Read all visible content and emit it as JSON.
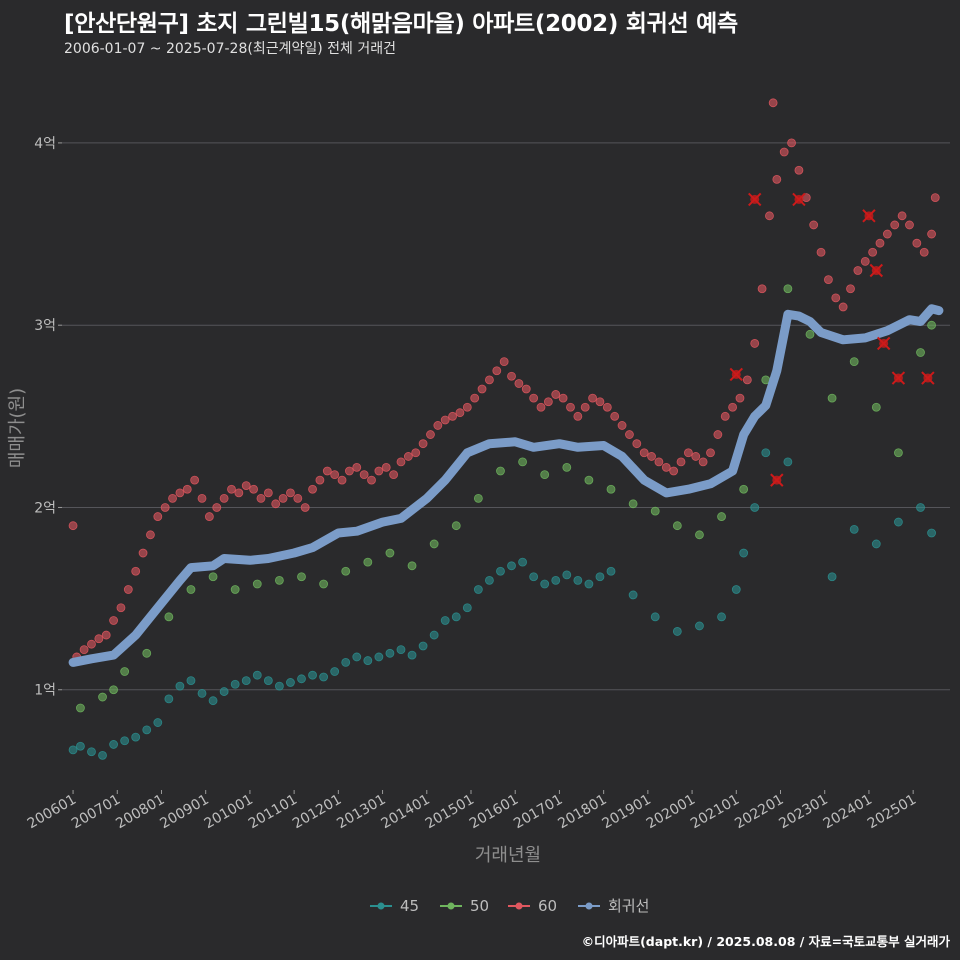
{
  "header": {
    "title": "[안산단원구] 초지 그린빌15(해맑음마을) 아파트(2002) 회귀선 예측",
    "subtitle": "2006-01-07 ~ 2025-07-28(최근계약일) 전체 거래건"
  },
  "footer": {
    "credit": "©디아파트(dapt.kr) / 2025.08.08 / 자료=국토교통부 실거래가"
  },
  "colors": {
    "background": "#2a2a2c",
    "grid": "#55555a",
    "s45": "#2b8f8f",
    "s50": "#6fb55e",
    "s60": "#e0575f",
    "regression": "#7b9cc8",
    "marker": "#cc1a1a"
  },
  "chart_data": {
    "type": "scatter",
    "xlabel": "거래년월",
    "ylabel": "매매가(원)",
    "x_range": [
      "2005-10",
      "2025-11"
    ],
    "ylim": [
      0.45,
      4.4
    ],
    "y_unit": "억",
    "y_ticks": [
      {
        "value": 1,
        "label": "1억"
      },
      {
        "value": 2,
        "label": "2억"
      },
      {
        "value": 3,
        "label": "3억"
      },
      {
        "value": 4,
        "label": "4억"
      }
    ],
    "x_ticks": [
      "200601",
      "200701",
      "200801",
      "200901",
      "201001",
      "201101",
      "201201",
      "201301",
      "201401",
      "201501",
      "201601",
      "201701",
      "201801",
      "201901",
      "202001",
      "202101",
      "202201",
      "202301",
      "202401",
      "202501"
    ],
    "grid": true,
    "legend_position": "bottom",
    "series": [
      {
        "name": "45",
        "points": [
          [
            "2006-01",
            0.67
          ],
          [
            "2006-03",
            0.69
          ],
          [
            "2006-06",
            0.66
          ],
          [
            "2006-09",
            0.64
          ],
          [
            "2006-12",
            0.7
          ],
          [
            "2007-03",
            0.72
          ],
          [
            "2007-06",
            0.74
          ],
          [
            "2007-09",
            0.78
          ],
          [
            "2007-12",
            0.82
          ],
          [
            "2008-03",
            0.95
          ],
          [
            "2008-06",
            1.02
          ],
          [
            "2008-09",
            1.05
          ],
          [
            "2008-12",
            0.98
          ],
          [
            "2009-03",
            0.94
          ],
          [
            "2009-06",
            0.99
          ],
          [
            "2009-09",
            1.03
          ],
          [
            "2009-12",
            1.05
          ],
          [
            "2010-03",
            1.08
          ],
          [
            "2010-06",
            1.05
          ],
          [
            "2010-09",
            1.02
          ],
          [
            "2010-12",
            1.04
          ],
          [
            "2011-03",
            1.06
          ],
          [
            "2011-06",
            1.08
          ],
          [
            "2011-09",
            1.07
          ],
          [
            "2011-12",
            1.1
          ],
          [
            "2012-03",
            1.15
          ],
          [
            "2012-06",
            1.18
          ],
          [
            "2012-09",
            1.16
          ],
          [
            "2012-12",
            1.18
          ],
          [
            "2013-03",
            1.2
          ],
          [
            "2013-06",
            1.22
          ],
          [
            "2013-09",
            1.19
          ],
          [
            "2013-12",
            1.24
          ],
          [
            "2014-03",
            1.3
          ],
          [
            "2014-06",
            1.38
          ],
          [
            "2014-09",
            1.4
          ],
          [
            "2014-12",
            1.45
          ],
          [
            "2015-03",
            1.55
          ],
          [
            "2015-06",
            1.6
          ],
          [
            "2015-09",
            1.65
          ],
          [
            "2015-12",
            1.68
          ],
          [
            "2016-03",
            1.7
          ],
          [
            "2016-06",
            1.62
          ],
          [
            "2016-09",
            1.58
          ],
          [
            "2016-12",
            1.6
          ],
          [
            "2017-03",
            1.63
          ],
          [
            "2017-06",
            1.6
          ],
          [
            "2017-09",
            1.58
          ],
          [
            "2017-12",
            1.62
          ],
          [
            "2018-03",
            1.65
          ],
          [
            "2018-09",
            1.52
          ],
          [
            "2019-03",
            1.4
          ],
          [
            "2019-09",
            1.32
          ],
          [
            "2020-03",
            1.35
          ],
          [
            "2020-09",
            1.4
          ],
          [
            "2021-01",
            1.55
          ],
          [
            "2021-03",
            1.75
          ],
          [
            "2021-06",
            2.0
          ],
          [
            "2021-09",
            2.3
          ],
          [
            "2022-03",
            2.25
          ],
          [
            "2023-03",
            1.62
          ],
          [
            "2023-09",
            1.88
          ],
          [
            "2024-03",
            1.8
          ],
          [
            "2024-09",
            1.92
          ],
          [
            "2025-03",
            2.0
          ],
          [
            "2025-06",
            1.86
          ]
        ]
      },
      {
        "name": "50",
        "points": [
          [
            "2006-03",
            0.9
          ],
          [
            "2006-09",
            0.96
          ],
          [
            "2006-12",
            1.0
          ],
          [
            "2007-03",
            1.1
          ],
          [
            "2007-09",
            1.2
          ],
          [
            "2008-03",
            1.4
          ],
          [
            "2008-09",
            1.55
          ],
          [
            "2009-03",
            1.62
          ],
          [
            "2009-09",
            1.55
          ],
          [
            "2010-03",
            1.58
          ],
          [
            "2010-09",
            1.6
          ],
          [
            "2011-03",
            1.62
          ],
          [
            "2011-09",
            1.58
          ],
          [
            "2012-03",
            1.65
          ],
          [
            "2012-09",
            1.7
          ],
          [
            "2013-03",
            1.75
          ],
          [
            "2013-09",
            1.68
          ],
          [
            "2014-03",
            1.8
          ],
          [
            "2014-09",
            1.9
          ],
          [
            "2015-03",
            2.05
          ],
          [
            "2015-09",
            2.2
          ],
          [
            "2016-03",
            2.25
          ],
          [
            "2016-09",
            2.18
          ],
          [
            "2017-03",
            2.22
          ],
          [
            "2017-09",
            2.15
          ],
          [
            "2018-03",
            2.1
          ],
          [
            "2018-09",
            2.02
          ],
          [
            "2019-03",
            1.98
          ],
          [
            "2019-09",
            1.9
          ],
          [
            "2020-03",
            1.85
          ],
          [
            "2020-09",
            1.95
          ],
          [
            "2021-03",
            2.1
          ],
          [
            "2021-09",
            2.7
          ],
          [
            "2022-03",
            3.2
          ],
          [
            "2022-09",
            2.95
          ],
          [
            "2023-03",
            2.6
          ],
          [
            "2023-09",
            2.8
          ],
          [
            "2024-03",
            2.55
          ],
          [
            "2024-09",
            2.3
          ],
          [
            "2025-03",
            2.85
          ],
          [
            "2025-06",
            3.0
          ]
        ]
      },
      {
        "name": "60",
        "points": [
          [
            "2006-01",
            1.9
          ],
          [
            "2006-02",
            1.18
          ],
          [
            "2006-04",
            1.22
          ],
          [
            "2006-06",
            1.25
          ],
          [
            "2006-08",
            1.28
          ],
          [
            "2006-10",
            1.3
          ],
          [
            "2006-12",
            1.38
          ],
          [
            "2007-02",
            1.45
          ],
          [
            "2007-04",
            1.55
          ],
          [
            "2007-06",
            1.65
          ],
          [
            "2007-08",
            1.75
          ],
          [
            "2007-10",
            1.85
          ],
          [
            "2007-12",
            1.95
          ],
          [
            "2008-02",
            2.0
          ],
          [
            "2008-04",
            2.05
          ],
          [
            "2008-06",
            2.08
          ],
          [
            "2008-08",
            2.1
          ],
          [
            "2008-10",
            2.15
          ],
          [
            "2008-12",
            2.05
          ],
          [
            "2009-02",
            1.95
          ],
          [
            "2009-04",
            2.0
          ],
          [
            "2009-06",
            2.05
          ],
          [
            "2009-08",
            2.1
          ],
          [
            "2009-10",
            2.08
          ],
          [
            "2009-12",
            2.12
          ],
          [
            "2010-02",
            2.1
          ],
          [
            "2010-04",
            2.05
          ],
          [
            "2010-06",
            2.08
          ],
          [
            "2010-08",
            2.02
          ],
          [
            "2010-10",
            2.05
          ],
          [
            "2010-12",
            2.08
          ],
          [
            "2011-02",
            2.05
          ],
          [
            "2011-04",
            2.0
          ],
          [
            "2011-06",
            2.1
          ],
          [
            "2011-08",
            2.15
          ],
          [
            "2011-10",
            2.2
          ],
          [
            "2011-12",
            2.18
          ],
          [
            "2012-02",
            2.15
          ],
          [
            "2012-04",
            2.2
          ],
          [
            "2012-06",
            2.22
          ],
          [
            "2012-08",
            2.18
          ],
          [
            "2012-10",
            2.15
          ],
          [
            "2012-12",
            2.2
          ],
          [
            "2013-02",
            2.22
          ],
          [
            "2013-04",
            2.18
          ],
          [
            "2013-06",
            2.25
          ],
          [
            "2013-08",
            2.28
          ],
          [
            "2013-10",
            2.3
          ],
          [
            "2013-12",
            2.35
          ],
          [
            "2014-02",
            2.4
          ],
          [
            "2014-04",
            2.45
          ],
          [
            "2014-06",
            2.48
          ],
          [
            "2014-08",
            2.5
          ],
          [
            "2014-10",
            2.52
          ],
          [
            "2014-12",
            2.55
          ],
          [
            "2015-02",
            2.6
          ],
          [
            "2015-04",
            2.65
          ],
          [
            "2015-06",
            2.7
          ],
          [
            "2015-08",
            2.75
          ],
          [
            "2015-10",
            2.8
          ],
          [
            "2015-12",
            2.72
          ],
          [
            "2016-02",
            2.68
          ],
          [
            "2016-04",
            2.65
          ],
          [
            "2016-06",
            2.6
          ],
          [
            "2016-08",
            2.55
          ],
          [
            "2016-10",
            2.58
          ],
          [
            "2016-12",
            2.62
          ],
          [
            "2017-02",
            2.6
          ],
          [
            "2017-04",
            2.55
          ],
          [
            "2017-06",
            2.5
          ],
          [
            "2017-08",
            2.55
          ],
          [
            "2017-10",
            2.6
          ],
          [
            "2017-12",
            2.58
          ],
          [
            "2018-02",
            2.55
          ],
          [
            "2018-04",
            2.5
          ],
          [
            "2018-06",
            2.45
          ],
          [
            "2018-08",
            2.4
          ],
          [
            "2018-10",
            2.35
          ],
          [
            "2018-12",
            2.3
          ],
          [
            "2019-02",
            2.28
          ],
          [
            "2019-04",
            2.25
          ],
          [
            "2019-06",
            2.22
          ],
          [
            "2019-08",
            2.2
          ],
          [
            "2019-10",
            2.25
          ],
          [
            "2019-12",
            2.3
          ],
          [
            "2020-02",
            2.28
          ],
          [
            "2020-04",
            2.25
          ],
          [
            "2020-06",
            2.3
          ],
          [
            "2020-08",
            2.4
          ],
          [
            "2020-10",
            2.5
          ],
          [
            "2020-12",
            2.55
          ],
          [
            "2021-02",
            2.6
          ],
          [
            "2021-04",
            2.7
          ],
          [
            "2021-06",
            2.9
          ],
          [
            "2021-08",
            3.2
          ],
          [
            "2021-10",
            3.6
          ],
          [
            "2021-12",
            3.8
          ],
          [
            "2022-02",
            3.95
          ],
          [
            "2022-04",
            4.0
          ],
          [
            "2022-06",
            3.85
          ],
          [
            "2022-08",
            3.7
          ],
          [
            "2022-10",
            3.55
          ],
          [
            "2022-12",
            3.4
          ],
          [
            "2023-02",
            3.25
          ],
          [
            "2023-04",
            3.15
          ],
          [
            "2023-06",
            3.1
          ],
          [
            "2023-08",
            3.2
          ],
          [
            "2023-10",
            3.3
          ],
          [
            "2023-12",
            3.35
          ],
          [
            "2024-02",
            3.4
          ],
          [
            "2024-04",
            3.45
          ],
          [
            "2024-06",
            3.5
          ],
          [
            "2024-08",
            3.55
          ],
          [
            "2024-10",
            3.6
          ],
          [
            "2024-12",
            3.55
          ],
          [
            "2025-02",
            3.45
          ],
          [
            "2025-04",
            3.4
          ],
          [
            "2025-06",
            3.5
          ],
          [
            "2025-07",
            3.7
          ],
          [
            "2021-11",
            4.22
          ]
        ]
      },
      {
        "name": "회귀선",
        "points": [
          [
            "2006-01",
            1.15
          ],
          [
            "2006-06",
            1.17
          ],
          [
            "2006-12",
            1.19
          ],
          [
            "2007-06",
            1.3
          ],
          [
            "2007-12",
            1.45
          ],
          [
            "2008-06",
            1.6
          ],
          [
            "2008-09",
            1.67
          ],
          [
            "2009-03",
            1.68
          ],
          [
            "2009-06",
            1.72
          ],
          [
            "2010-01",
            1.71
          ],
          [
            "2010-06",
            1.72
          ],
          [
            "2011-01",
            1.75
          ],
          [
            "2011-06",
            1.78
          ],
          [
            "2012-01",
            1.86
          ],
          [
            "2012-06",
            1.87
          ],
          [
            "2013-01",
            1.92
          ],
          [
            "2013-06",
            1.94
          ],
          [
            "2014-01",
            2.05
          ],
          [
            "2014-06",
            2.15
          ],
          [
            "2014-12",
            2.3
          ],
          [
            "2015-06",
            2.35
          ],
          [
            "2016-01",
            2.36
          ],
          [
            "2016-06",
            2.33
          ],
          [
            "2017-01",
            2.35
          ],
          [
            "2017-06",
            2.33
          ],
          [
            "2018-01",
            2.34
          ],
          [
            "2018-06",
            2.28
          ],
          [
            "2018-12",
            2.15
          ],
          [
            "2019-06",
            2.08
          ],
          [
            "2019-12",
            2.1
          ],
          [
            "2020-06",
            2.13
          ],
          [
            "2020-12",
            2.2
          ],
          [
            "2021-03",
            2.4
          ],
          [
            "2021-06",
            2.5
          ],
          [
            "2021-09",
            2.56
          ],
          [
            "2021-12",
            2.75
          ],
          [
            "2022-03",
            3.06
          ],
          [
            "2022-06",
            3.05
          ],
          [
            "2022-09",
            3.02
          ],
          [
            "2022-12",
            2.96
          ],
          [
            "2023-06",
            2.92
          ],
          [
            "2023-12",
            2.93
          ],
          [
            "2024-06",
            2.97
          ],
          [
            "2024-12",
            3.03
          ],
          [
            "2025-03",
            3.02
          ],
          [
            "2025-06",
            3.09
          ],
          [
            "2025-08",
            3.08
          ]
        ]
      }
    ],
    "highlighted_points": [
      [
        "2021-01",
        2.73
      ],
      [
        "2021-06",
        3.69
      ],
      [
        "2021-12",
        2.15
      ],
      [
        "2022-06",
        3.69
      ],
      [
        "2024-01",
        3.6
      ],
      [
        "2024-03",
        3.3
      ],
      [
        "2024-05",
        2.9
      ],
      [
        "2024-09",
        2.71
      ],
      [
        "2025-05",
        2.71
      ]
    ]
  }
}
